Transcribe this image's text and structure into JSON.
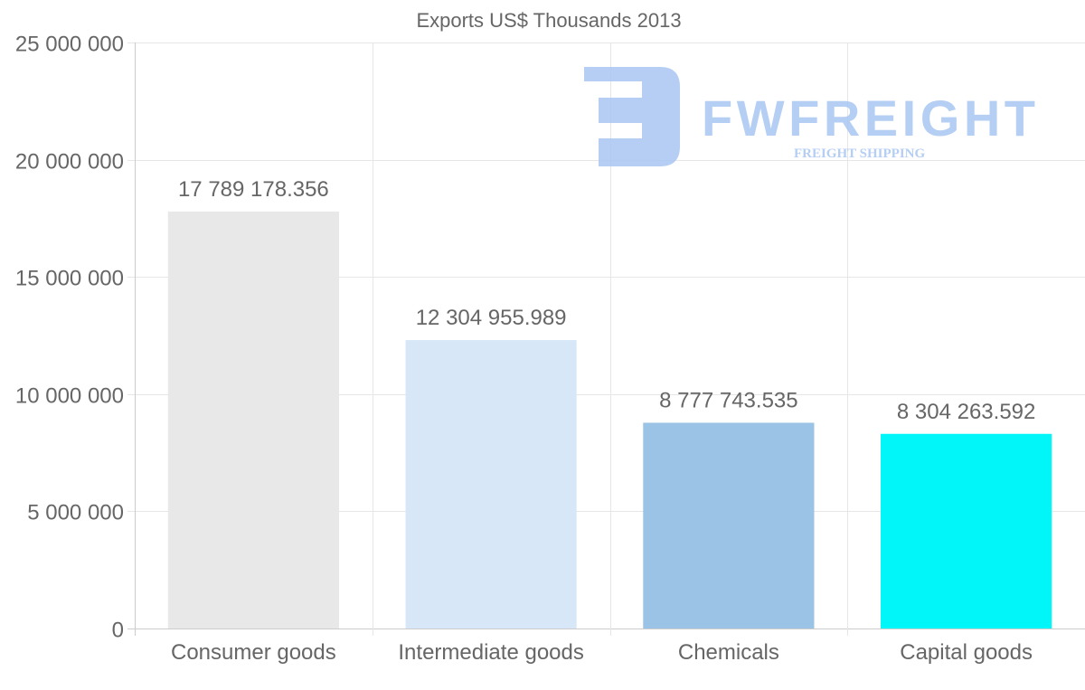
{
  "chart_data": {
    "type": "bar",
    "title": "Exports US$ Thousands 2013",
    "categories": [
      "Consumer goods",
      "Intermediate goods",
      "Chemicals",
      "Capital goods"
    ],
    "values": [
      17789178.356,
      12304955.989,
      8777743.535,
      8304263.592
    ],
    "value_labels": [
      "17 789 178.356",
      "12 304 955.989",
      "8 777 743.535",
      "8 304 263.592"
    ],
    "colors": [
      "#e8e8e8",
      "#d7e7f8",
      "#9ac3e6",
      "#00f6f8"
    ],
    "ylim": [
      0,
      25000000
    ],
    "yticks": [
      0,
      5000000,
      10000000,
      15000000,
      20000000,
      25000000
    ],
    "ytick_labels": [
      "0",
      "5 000 000",
      "10 000 000",
      "15 000 000",
      "20 000 000",
      "25 000 000"
    ],
    "xlabel": "",
    "ylabel": "",
    "grid": true,
    "legend": "none"
  },
  "watermark": {
    "brand": "FWFREIGHT",
    "tagline": "FREIGHT SHIPPING",
    "color": "#a9c6f2"
  }
}
